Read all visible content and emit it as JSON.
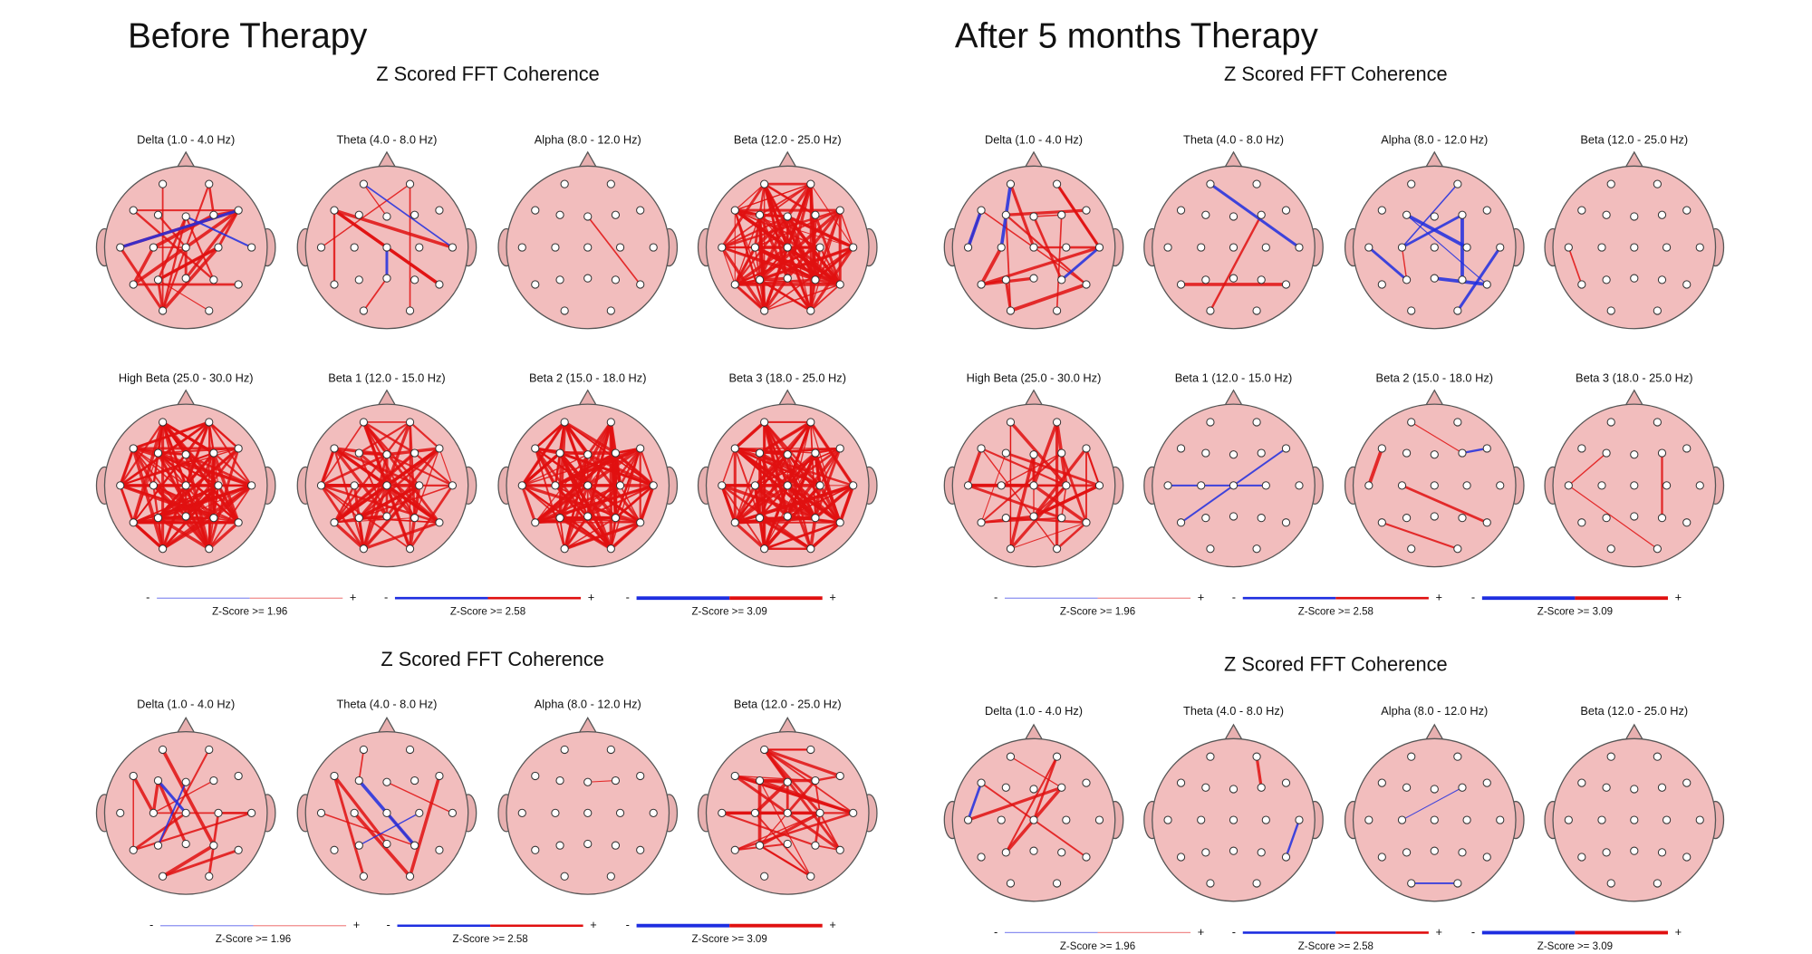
{
  "panels": [
    {
      "title": "Before Therapy",
      "sections": [
        {
          "title": "Z Scored FFT Coherence",
          "bands": [
            "Delta (1.0 - 4.0 Hz)",
            "Theta (4.0 - 8.0 Hz)",
            "Alpha (8.0 - 12.0 Hz)",
            "Beta (12.0 - 25.0 Hz)",
            "High Beta (25.0 - 30.0 Hz)",
            "Beta 1 (12.0 - 15.0 Hz)",
            "Beta 2 (15.0 - 18.0 Hz)",
            "Beta 3 (18.0 - 25.0 Hz)"
          ],
          "legend": [
            {
              "minus": "-",
              "plus": "+",
              "label": "Z-Score >= 1.96"
            },
            {
              "minus": "-",
              "plus": "+",
              "label": "Z-Score >= 2.58"
            },
            {
              "minus": "-",
              "plus": "+",
              "label": "Z-Score >= 3.09"
            }
          ]
        },
        {
          "title": "Z Scored FFT Coherence",
          "bands": [
            "Delta (1.0 - 4.0 Hz)",
            "Theta (4.0 - 8.0 Hz)",
            "Alpha (8.0 - 12.0 Hz)",
            "Beta (12.0 - 25.0 Hz)"
          ],
          "legend": [
            {
              "minus": "-",
              "plus": "+",
              "label": "Z-Score >= 1.96"
            },
            {
              "minus": "-",
              "plus": "+",
              "label": "Z-Score >= 2.58"
            },
            {
              "minus": "-",
              "plus": "+",
              "label": "Z-Score >= 3.09"
            }
          ]
        }
      ]
    },
    {
      "title": "After 5 months Therapy",
      "sections": [
        {
          "title": "Z Scored FFT Coherence",
          "bands": [
            "Delta (1.0 - 4.0 Hz)",
            "Theta (4.0 - 8.0 Hz)",
            "Alpha (8.0 - 12.0 Hz)",
            "Beta (12.0 - 25.0 Hz)",
            "High Beta (25.0 - 30.0 Hz)",
            "Beta 1 (12.0 - 15.0 Hz)",
            "Beta 2 (15.0 - 18.0 Hz)",
            "Beta 3 (18.0 - 25.0 Hz)"
          ],
          "legend": [
            {
              "minus": "-",
              "plus": "+",
              "label": "Z-Score >= 1.96"
            },
            {
              "minus": "-",
              "plus": "+",
              "label": "Z-Score >= 2.58"
            },
            {
              "minus": "-",
              "plus": "+",
              "label": "Z-Score >= 3.09"
            }
          ]
        },
        {
          "title": "Z Scored FFT Coherence",
          "bands": [
            "Delta (1.0 - 4.0 Hz)",
            "Theta (4.0 - 8.0 Hz)",
            "Alpha (8.0 - 12.0 Hz)",
            "Beta (12.0 - 25.0 Hz)"
          ],
          "legend": [
            {
              "minus": "-",
              "plus": "+",
              "label": "Z-Score >= 1.96"
            },
            {
              "minus": "-",
              "plus": "+",
              "label": "Z-Score >= 2.58"
            },
            {
              "minus": "-",
              "plus": "+",
              "label": "Z-Score >= 3.09"
            }
          ]
        }
      ]
    }
  ]
}
